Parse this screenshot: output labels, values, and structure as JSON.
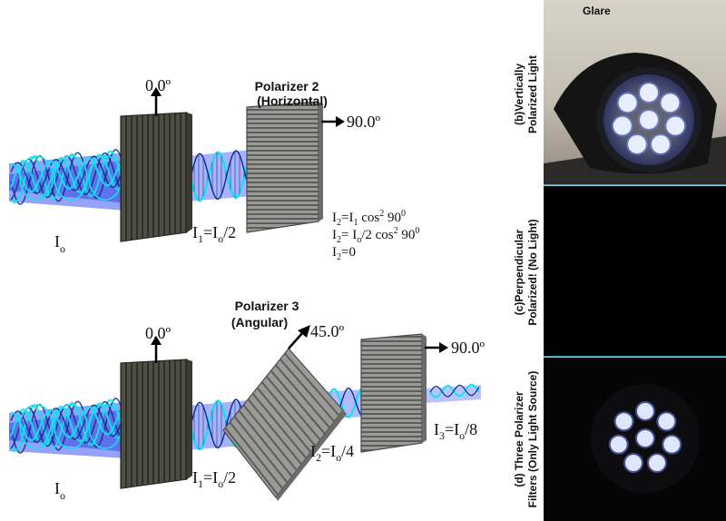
{
  "colors": {
    "beam_fill": "#3d55f0",
    "wave_cyan": "#16e0f0",
    "wave_dark": "#0a2a90",
    "polarizer_dark": "#4e4f45",
    "polarizer_gray": "#8a8a88",
    "photo_divider": "#41d2e6",
    "led_white": "#e9eeff",
    "led_blue": "#6f86ff"
  },
  "top_setup": {
    "angle_first": "0.0º",
    "polarizer2_title": "Polarizer 2",
    "polarizer2_sub": "(Horizontal)",
    "angle_second": "90.0º",
    "i0_base": "I",
    "i0_sub": "o",
    "i1_eq": {
      "a": "I",
      "a_sub": "1",
      "b": "=I",
      "b_sub": "o",
      "c": "/2"
    },
    "eq_lines": [
      {
        "a": "I",
        "a_sub": "2",
        "b": "=I",
        "b_sub": "1",
        "c": " cos",
        "c_sup": "2",
        "d": " 90",
        "d_sup": "0"
      },
      {
        "a": "I",
        "a_sub": "2",
        "b": "= I",
        "b_sub": "o",
        "c": "/2 cos",
        "c_sup": "2",
        "d": " 90",
        "d_sup": "0"
      },
      {
        "a": "I",
        "a_sub": "2",
        "b": "=0"
      }
    ]
  },
  "bottom_setup": {
    "angle_first": "0.0º",
    "polarizer3_title": "Polarizer 3",
    "polarizer3_sub": "(Angular)",
    "angle_mid": "45.0º",
    "angle_last": "90.0º",
    "i0_base": "I",
    "i0_sub": "o",
    "i1_eq": {
      "a": "I",
      "a_sub": "1",
      "b": "=I",
      "b_sub": "o",
      "c": "/2"
    },
    "i2_eq": {
      "a": "I",
      "a_sub": "2",
      "b": "=I",
      "b_sub": "o",
      "c": "/4"
    },
    "i3_eq": {
      "a": "I",
      "a_sub": "3",
      "b": "=I",
      "b_sub": "o",
      "c": "/8"
    }
  },
  "photos": {
    "glare": "Glare",
    "label_b": [
      "(b)Vertically",
      "Polarized Light"
    ],
    "label_c": [
      "(c)Perpendicular",
      "Polarized! (No Light)"
    ],
    "label_d": [
      "(d) Three Polarizer",
      "Filters (Only Light Source)"
    ]
  }
}
